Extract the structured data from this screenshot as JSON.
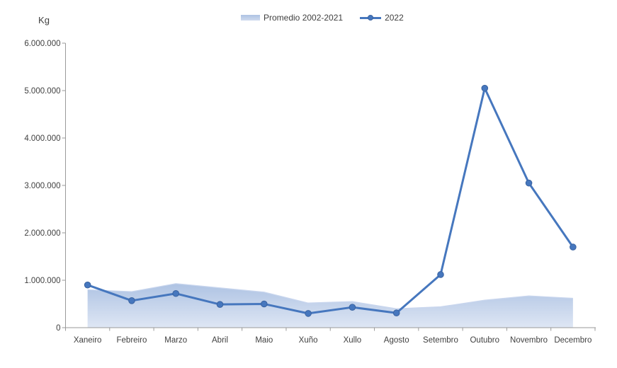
{
  "colors": {
    "line": "#4677BE",
    "marker_edge": "#3A63A0",
    "area_top": "#AEC3E3",
    "area_bottom": "#DEE6F4",
    "area_edge": "#C9D6EE",
    "axis": "#9A9A9A",
    "text": "#404040"
  },
  "chart_data": {
    "type": "area+line",
    "title": "",
    "ylabel": "Kg",
    "xlabel": "",
    "ylim": [
      0,
      6000000
    ],
    "y_tick_step": 1000000,
    "y_tick_labels": [
      "0",
      "1.000.000",
      "2.000.000",
      "3.000.000",
      "4.000.000",
      "5.000.000",
      "6.000.000"
    ],
    "grid": false,
    "legend_position": "top",
    "categories": [
      "Xaneiro",
      "Febreiro",
      "Marzo",
      "Abril",
      "Maio",
      "Xuño",
      "Xullo",
      "Agosto",
      "Setembro",
      "Outubro",
      "Novembro",
      "Decembro"
    ],
    "series": [
      {
        "name": "Promedio 2002-2021",
        "type": "area",
        "values": [
          800000,
          760000,
          930000,
          840000,
          750000,
          520000,
          550000,
          400000,
          440000,
          580000,
          670000,
          620000
        ]
      },
      {
        "name": "2022",
        "type": "line",
        "values": [
          900000,
          570000,
          720000,
          490000,
          500000,
          300000,
          430000,
          310000,
          1120000,
          5050000,
          3050000,
          1700000
        ]
      }
    ]
  }
}
